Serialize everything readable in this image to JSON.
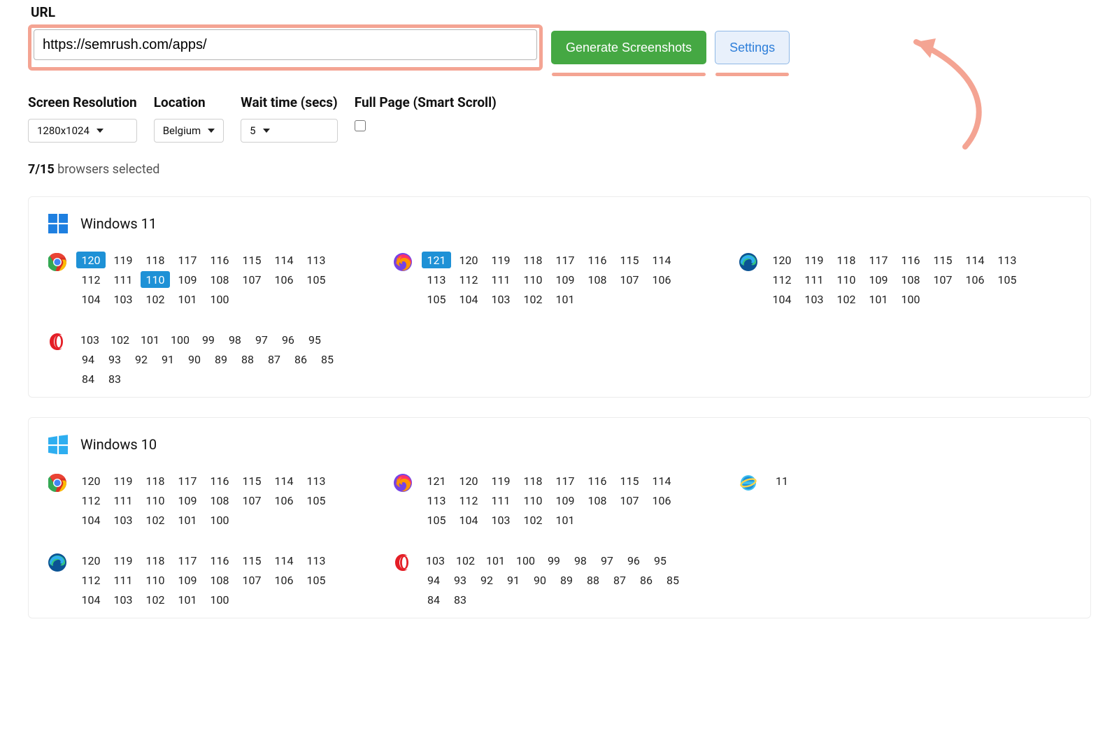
{
  "colors": {
    "highlight_border": "#f4a493",
    "primary_btn_bg": "#45a843",
    "secondary_btn_bg": "#e8f0fb",
    "secondary_btn_text": "#2d7ed9",
    "secondary_btn_border": "#8fb8e6",
    "version_selected_bg": "#1e91d6",
    "arrow": "#f4a493",
    "win11_icon": "#1e7fe0",
    "win10_icon": "#2eaef0"
  },
  "url_label": "URL",
  "url_value": "https://semrush.com/apps/",
  "generate_label": "Generate Screenshots",
  "settings_label": "Settings",
  "options": {
    "resolution": {
      "label": "Screen Resolution",
      "value": "1280x1024"
    },
    "location": {
      "label": "Location",
      "value": "Belgium"
    },
    "wait": {
      "label": "Wait time (secs)",
      "value": "5"
    },
    "fullpage": {
      "label": "Full Page (Smart Scroll)",
      "checked": false
    }
  },
  "selection": {
    "selected": "7",
    "total": "15",
    "suffix": " browsers selected"
  },
  "os_groups": [
    {
      "name": "Windows 11",
      "icon": "win11",
      "browsers": [
        {
          "icon": "chrome",
          "versions": [
            120,
            119,
            118,
            117,
            116,
            115,
            114,
            113,
            112,
            111,
            110,
            109,
            108,
            107,
            106,
            105,
            104,
            103,
            102,
            101,
            100
          ],
          "selected": [
            120,
            110
          ]
        },
        {
          "icon": "firefox",
          "versions": [
            121,
            120,
            119,
            118,
            117,
            116,
            115,
            114,
            113,
            112,
            111,
            110,
            109,
            108,
            107,
            106,
            105,
            104,
            103,
            102,
            101
          ],
          "selected": [
            121
          ]
        },
        {
          "icon": "edge",
          "versions": [
            120,
            119,
            118,
            117,
            116,
            115,
            114,
            113,
            112,
            111,
            110,
            109,
            108,
            107,
            106,
            105,
            104,
            103,
            102,
            101,
            100
          ],
          "selected": []
        },
        {
          "icon": "opera",
          "narrow": true,
          "versions": [
            103,
            102,
            101,
            100,
            99,
            98,
            97,
            96,
            95,
            94,
            93,
            92,
            91,
            90,
            89,
            88,
            87,
            86,
            85,
            84,
            83
          ],
          "selected": []
        }
      ]
    },
    {
      "name": "Windows 10",
      "icon": "win10",
      "browsers": [
        {
          "icon": "chrome",
          "versions": [
            120,
            119,
            118,
            117,
            116,
            115,
            114,
            113,
            112,
            111,
            110,
            109,
            108,
            107,
            106,
            105,
            104,
            103,
            102,
            101,
            100
          ],
          "selected": []
        },
        {
          "icon": "firefox",
          "versions": [
            121,
            120,
            119,
            118,
            117,
            116,
            115,
            114,
            113,
            112,
            111,
            110,
            109,
            108,
            107,
            106,
            105,
            104,
            103,
            102,
            101
          ],
          "selected": []
        },
        {
          "icon": "ie",
          "versions": [
            11
          ],
          "selected": []
        },
        {
          "icon": "edge",
          "versions": [
            120,
            119,
            118,
            117,
            116,
            115,
            114,
            113,
            112,
            111,
            110,
            109,
            108,
            107,
            106,
            105,
            104,
            103,
            102,
            101,
            100
          ],
          "selected": []
        },
        {
          "icon": "opera",
          "narrow": true,
          "versions": [
            103,
            102,
            101,
            100,
            99,
            98,
            97,
            96,
            95,
            94,
            93,
            92,
            91,
            90,
            89,
            88,
            87,
            86,
            85,
            84,
            83
          ],
          "selected": []
        }
      ]
    }
  ]
}
